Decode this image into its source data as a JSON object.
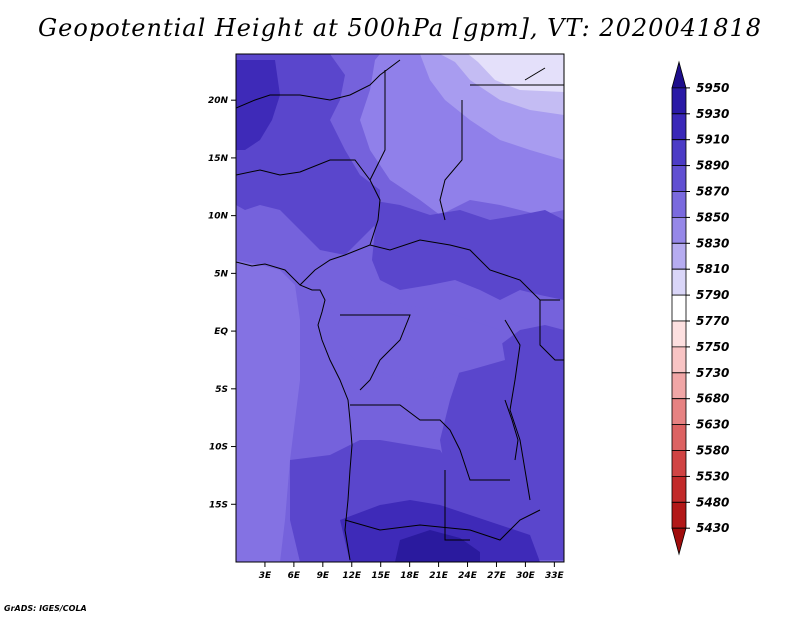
{
  "title": "Geopotential Height at 500hPa [gpm], VT: 2020041818",
  "credit": "GrADS: IGES/COLA",
  "map": {
    "lon_range": [
      0,
      34
    ],
    "lat_range": [
      -20,
      24
    ],
    "x_ticks": [
      {
        "lon": 3,
        "label": "3E"
      },
      {
        "lon": 6,
        "label": "6E"
      },
      {
        "lon": 9,
        "label": "9E"
      },
      {
        "lon": 12,
        "label": "12E"
      },
      {
        "lon": 15,
        "label": "15E"
      },
      {
        "lon": 18,
        "label": "18E"
      },
      {
        "lon": 21,
        "label": "21E"
      },
      {
        "lon": 24,
        "label": "24E"
      },
      {
        "lon": 27,
        "label": "27E"
      },
      {
        "lon": 30,
        "label": "30E"
      },
      {
        "lon": 33,
        "label": "33E"
      }
    ],
    "y_ticks": [
      {
        "lat": 20,
        "label": "20N"
      },
      {
        "lat": 15,
        "label": "15N"
      },
      {
        "lat": 10,
        "label": "10N"
      },
      {
        "lat": 5,
        "label": "5N"
      },
      {
        "lat": 0,
        "label": "EQ"
      },
      {
        "lat": -5,
        "label": "5S"
      },
      {
        "lat": -10,
        "label": "10S"
      },
      {
        "lat": -15,
        "label": "15S"
      }
    ],
    "fill_colors": {
      "5830": "#a89cf0",
      "5850": "#9080ea",
      "5870": "#7562dc",
      "5890": "#5a46cc",
      "5910": "#3e2ab8",
      "5930": "#2a1a9e"
    }
  },
  "colorbar": {
    "levels": [
      "5950",
      "5930",
      "5910",
      "5890",
      "5870",
      "5850",
      "5830",
      "5810",
      "5790",
      "5770",
      "5750",
      "5730",
      "5680",
      "5630",
      "5580",
      "5530",
      "5480",
      "5430"
    ],
    "colors": [
      "#1e0e8c",
      "#2a1aa6",
      "#3a28b8",
      "#4c3cc6",
      "#6150d2",
      "#7a6ade",
      "#9688e8",
      "#b6acf0",
      "#dad6f8",
      "#ffffff",
      "#fde0e0",
      "#f8c4c4",
      "#f0a6a6",
      "#e68282",
      "#dc6262",
      "#d04444",
      "#c22a2a",
      "#b21818",
      "#a00c0c"
    ]
  }
}
